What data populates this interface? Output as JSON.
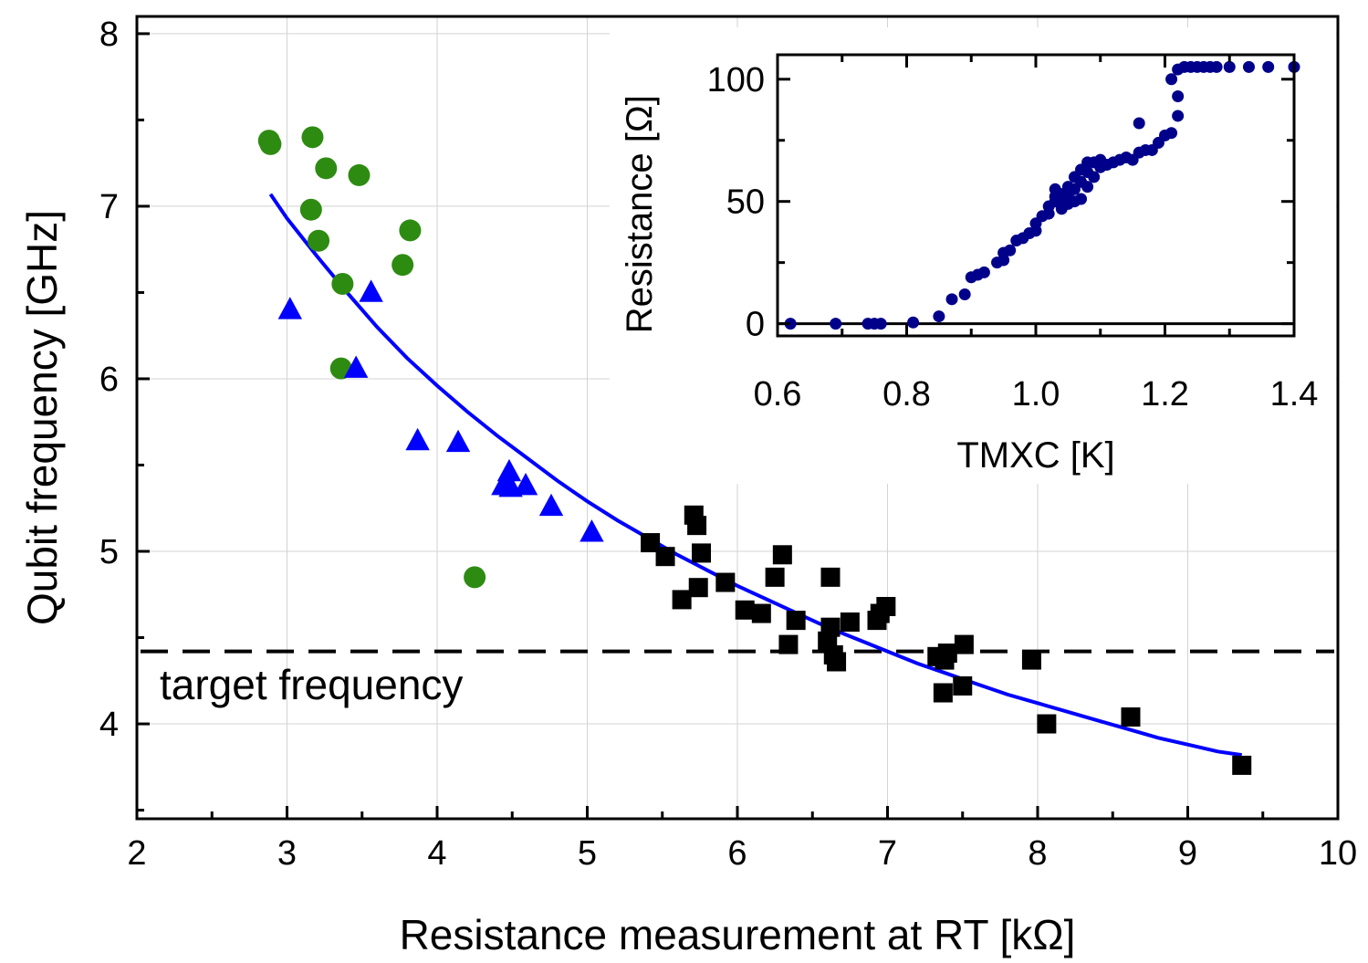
{
  "chart_data": [
    {
      "type": "scatter",
      "title": "",
      "xlabel": "Resistance measurement at RT [kΩ]",
      "ylabel": "Qubit frequency [GHz]",
      "xlim": [
        2,
        10
      ],
      "ylim": [
        3.45,
        8.1
      ],
      "xticks": [
        "2",
        "3",
        "4",
        "5",
        "6",
        "7",
        "8",
        "9",
        "10"
      ],
      "yticks": [
        "4",
        "5",
        "6",
        "7",
        "8"
      ],
      "grid": true,
      "annotation": "target frequency",
      "target_frequency": 4.42,
      "series": [
        {
          "marker": "circle",
          "color": "#2e8b12",
          "points": [
            [
              2.88,
              7.38
            ],
            [
              2.89,
              7.36
            ],
            [
              3.17,
              7.4
            ],
            [
              3.26,
              7.22
            ],
            [
              3.48,
              7.18
            ],
            [
              3.16,
              6.98
            ],
            [
              3.21,
              6.8
            ],
            [
              3.82,
              6.86
            ],
            [
              3.77,
              6.66
            ],
            [
              3.37,
              6.55
            ],
            [
              3.36,
              6.06
            ],
            [
              4.25,
              4.85
            ]
          ]
        },
        {
          "marker": "triangle",
          "color": "#0000ff",
          "points": [
            [
              3.02,
              6.4
            ],
            [
              3.56,
              6.5
            ],
            [
              3.46,
              6.06
            ],
            [
              3.87,
              5.64
            ],
            [
              4.14,
              5.63
            ],
            [
              4.48,
              5.46
            ],
            [
              4.44,
              5.38
            ],
            [
              4.49,
              5.37
            ],
            [
              4.59,
              5.38
            ],
            [
              4.76,
              5.26
            ],
            [
              5.03,
              5.11
            ]
          ]
        },
        {
          "marker": "square",
          "color": "#000000",
          "points": [
            [
              5.42,
              5.05
            ],
            [
              5.52,
              4.97
            ],
            [
              5.71,
              5.21
            ],
            [
              5.73,
              5.15
            ],
            [
              5.76,
              4.99
            ],
            [
              5.74,
              4.79
            ],
            [
              5.63,
              4.72
            ],
            [
              5.92,
              4.82
            ],
            [
              6.05,
              4.66
            ],
            [
              6.16,
              4.64
            ],
            [
              6.3,
              4.98
            ],
            [
              6.25,
              4.85
            ],
            [
              6.39,
              4.6
            ],
            [
              6.34,
              4.46
            ],
            [
              6.62,
              4.85
            ],
            [
              6.6,
              4.48
            ],
            [
              6.62,
              4.56
            ],
            [
              6.64,
              4.4
            ],
            [
              6.66,
              4.36
            ],
            [
              6.75,
              4.59
            ],
            [
              6.93,
              4.6
            ],
            [
              6.95,
              4.64
            ],
            [
              6.99,
              4.68
            ],
            [
              7.33,
              4.39
            ],
            [
              7.4,
              4.41
            ],
            [
              7.38,
              4.37
            ],
            [
              7.37,
              4.18
            ],
            [
              7.5,
              4.22
            ],
            [
              7.51,
              4.46
            ],
            [
              7.96,
              4.37
            ],
            [
              8.06,
              4.0
            ],
            [
              8.62,
              4.04
            ],
            [
              9.36,
              3.76
            ]
          ]
        },
        {
          "type": "line",
          "color": "#0000ff",
          "points": [
            [
              2.89,
              7.07
            ],
            [
              3.0,
              6.93
            ],
            [
              3.2,
              6.71
            ],
            [
              3.4,
              6.5
            ],
            [
              3.6,
              6.3
            ],
            [
              3.8,
              6.12
            ],
            [
              4.0,
              5.96
            ],
            [
              4.2,
              5.81
            ],
            [
              4.4,
              5.67
            ],
            [
              4.6,
              5.54
            ],
            [
              4.8,
              5.41
            ],
            [
              5.0,
              5.29
            ],
            [
              5.2,
              5.18
            ],
            [
              5.4,
              5.08
            ],
            [
              5.6,
              4.98
            ],
            [
              5.8,
              4.89
            ],
            [
              6.0,
              4.8
            ],
            [
              6.2,
              4.72
            ],
            [
              6.4,
              4.64
            ],
            [
              6.6,
              4.56
            ],
            [
              6.8,
              4.49
            ],
            [
              7.0,
              4.42
            ],
            [
              7.2,
              4.35
            ],
            [
              7.4,
              4.29
            ],
            [
              7.6,
              4.23
            ],
            [
              7.8,
              4.17
            ],
            [
              8.0,
              4.12
            ],
            [
              8.2,
              4.07
            ],
            [
              8.4,
              4.02
            ],
            [
              8.6,
              3.97
            ],
            [
              8.8,
              3.92
            ],
            [
              9.0,
              3.88
            ],
            [
              9.2,
              3.84
            ],
            [
              9.36,
              3.82
            ]
          ]
        }
      ]
    },
    {
      "type": "scatter",
      "title": "",
      "xlabel": "TMXC [K]",
      "ylabel": "Resistance [Ω]",
      "xlim": [
        0.6,
        1.4
      ],
      "ylim": [
        -5,
        110
      ],
      "xticks": [
        "0.6",
        "0.8",
        "1.0",
        "1.2",
        "1.4"
      ],
      "yticks": [
        "0",
        "50",
        "100"
      ],
      "grid": false,
      "zero_line": true,
      "series": [
        {
          "marker": "circle",
          "color": "#00008b",
          "points": [
            [
              0.62,
              0
            ],
            [
              0.69,
              0
            ],
            [
              0.74,
              0
            ],
            [
              0.75,
              0
            ],
            [
              0.76,
              0
            ],
            [
              0.81,
              0.5
            ],
            [
              0.85,
              3
            ],
            [
              0.87,
              10
            ],
            [
              0.89,
              12
            ],
            [
              0.9,
              19
            ],
            [
              0.91,
              20
            ],
            [
              0.92,
              21
            ],
            [
              0.94,
              25
            ],
            [
              0.95,
              26
            ],
            [
              0.95,
              29
            ],
            [
              0.96,
              30
            ],
            [
              0.97,
              34
            ],
            [
              0.98,
              35
            ],
            [
              0.99,
              37
            ],
            [
              1.0,
              38
            ],
            [
              1.0,
              41
            ],
            [
              1.01,
              44
            ],
            [
              1.02,
              45
            ],
            [
              1.02,
              48
            ],
            [
              1.03,
              50
            ],
            [
              1.03,
              52
            ],
            [
              1.03,
              55
            ],
            [
              1.04,
              47
            ],
            [
              1.04,
              50
            ],
            [
              1.04,
              53
            ],
            [
              1.05,
              49
            ],
            [
              1.05,
              52
            ],
            [
              1.05,
              56
            ],
            [
              1.06,
              50
            ],
            [
              1.06,
              55
            ],
            [
              1.06,
              60
            ],
            [
              1.07,
              51
            ],
            [
              1.07,
              58
            ],
            [
              1.07,
              63
            ],
            [
              1.08,
              56
            ],
            [
              1.08,
              62
            ],
            [
              1.08,
              66
            ],
            [
              1.09,
              60
            ],
            [
              1.09,
              66
            ],
            [
              1.1,
              64
            ],
            [
              1.1,
              67
            ],
            [
              1.11,
              65
            ],
            [
              1.12,
              66
            ],
            [
              1.13,
              67
            ],
            [
              1.14,
              68
            ],
            [
              1.15,
              67
            ],
            [
              1.16,
              70
            ],
            [
              1.16,
              82
            ],
            [
              1.17,
              71
            ],
            [
              1.18,
              71
            ],
            [
              1.19,
              74
            ],
            [
              1.2,
              77
            ],
            [
              1.21,
              78
            ],
            [
              1.22,
              85
            ],
            [
              1.22,
              93
            ],
            [
              1.21,
              100
            ],
            [
              1.22,
              104
            ],
            [
              1.23,
              105
            ],
            [
              1.24,
              105
            ],
            [
              1.25,
              105
            ],
            [
              1.26,
              105
            ],
            [
              1.27,
              105
            ],
            [
              1.28,
              105
            ],
            [
              1.3,
              105
            ],
            [
              1.33,
              105
            ],
            [
              1.36,
              105
            ],
            [
              1.4,
              105
            ]
          ]
        }
      ]
    }
  ]
}
